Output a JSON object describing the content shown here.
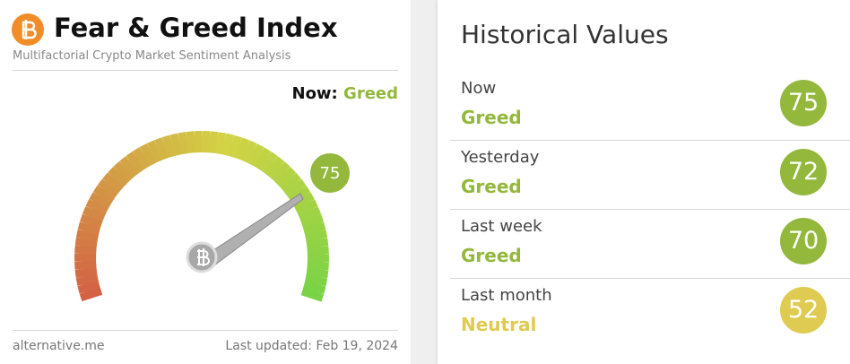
{
  "left": {
    "title": "Fear & Greed Index",
    "subtitle": "Multifactorial Crypto Market Sentiment Analysis",
    "now_label": "Now:",
    "now_class": "Greed",
    "now_color": "#93b83c",
    "value": 75,
    "footer_left": "alternative.me",
    "footer_right": "Last updated: Feb 19, 2024"
  },
  "right": {
    "title": "Historical Values",
    "rows": [
      {
        "period": "Now",
        "class": "Greed",
        "value": 75,
        "color": "#93b83c"
      },
      {
        "period": "Yesterday",
        "class": "Greed",
        "value": 72,
        "color": "#93b83c"
      },
      {
        "period": "Last week",
        "class": "Greed",
        "value": 70,
        "color": "#93b83c"
      },
      {
        "period": "Last month",
        "class": "Neutral",
        "value": 52,
        "color": "#dfcb52"
      }
    ]
  }
}
